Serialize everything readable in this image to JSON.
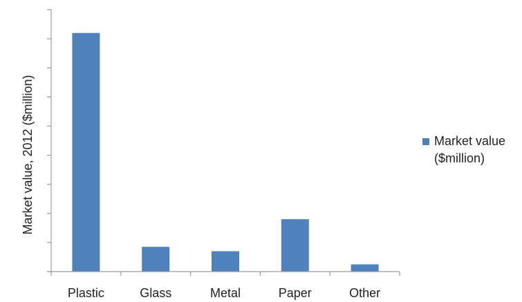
{
  "chart_data": {
    "type": "bar",
    "title": "",
    "xlabel": "",
    "ylabel": "Market value, 2012 ($million)",
    "categories": [
      "Plastic",
      "Glass",
      "Metal",
      "Paper",
      "Other"
    ],
    "series": [
      {
        "name": "Market value ($million)",
        "values": [
          8.2,
          0.85,
          0.7,
          1.8,
          0.25
        ]
      }
    ],
    "ylim": [
      0,
      9
    ],
    "y_tick_count": 9,
    "y_tick_labels_visible": false,
    "grid": false,
    "legend": {
      "position": "right",
      "lines": [
        "Market value",
        "($million)"
      ]
    },
    "colors": {
      "bar": "#4f81bd",
      "axis": "#9a9a9a",
      "text": "#222222"
    }
  }
}
